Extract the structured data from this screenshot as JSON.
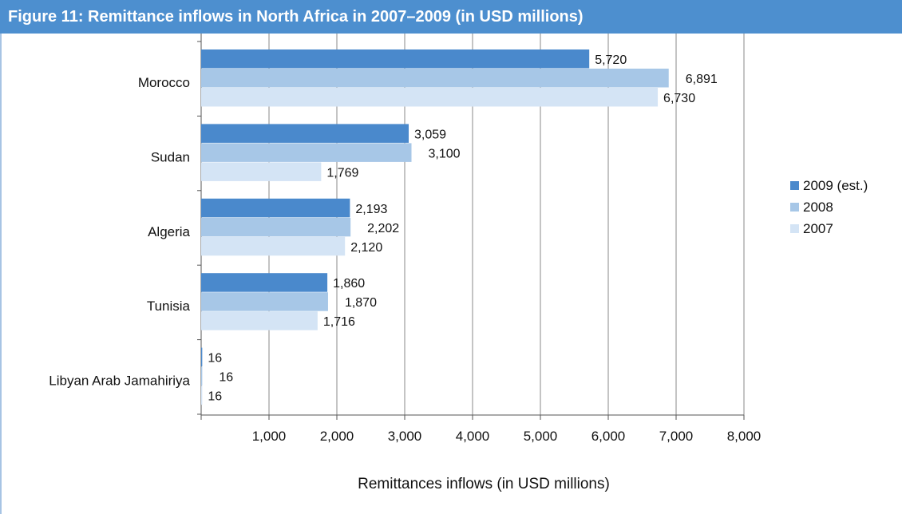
{
  "title": "Figure 11: Remittance inflows in North Africa in 2007–2009 (in USD millions)",
  "chart_data": {
    "type": "bar",
    "orientation": "horizontal",
    "categories": [
      "Morocco",
      "Sudan",
      "Algeria",
      "Tunisia",
      "Libyan Arab Jamahiriya"
    ],
    "series": [
      {
        "name": "2009 (est.)",
        "color": "#4a89cc",
        "values": [
          5720,
          3059,
          2193,
          1860,
          16
        ]
      },
      {
        "name": "2008",
        "color": "#a7c7e7",
        "values": [
          6891,
          3100,
          2202,
          1870,
          16
        ]
      },
      {
        "name": "2007",
        "color": "#d4e4f5",
        "values": [
          6730,
          1769,
          2120,
          1716,
          16
        ]
      }
    ],
    "data_labels": [
      [
        "5,720",
        "3,059",
        "2,193",
        "1,860",
        "16"
      ],
      [
        "6,891",
        "3,100",
        "2,202",
        "1,870",
        "16"
      ],
      [
        "6,730",
        "1,769",
        "2,120",
        "1,716",
        "16"
      ]
    ],
    "xlabel": "Remittances inflows (in USD millions)",
    "ylabel": "",
    "xlim": [
      0,
      8000
    ],
    "xticks": [
      1000,
      2000,
      3000,
      4000,
      5000,
      6000,
      7000,
      8000
    ],
    "xtick_labels": [
      "1,000",
      "2,000",
      "3,000",
      "4,000",
      "5,000",
      "6,000",
      "7,000",
      "8,000"
    ],
    "grid": "vertical",
    "legend": "right"
  }
}
